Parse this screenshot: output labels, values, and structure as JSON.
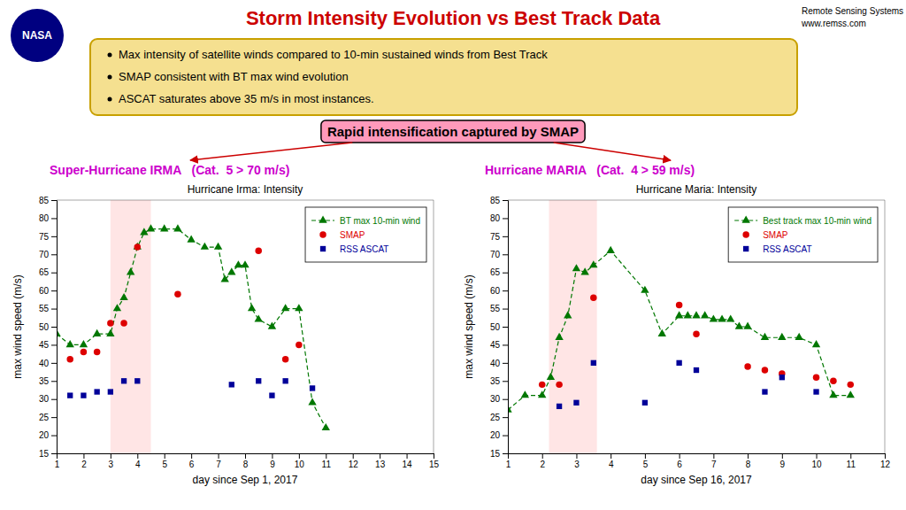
{
  "title": "Storm Intensity Evolution vs Best Track Data",
  "title_color": "#cc0000",
  "background_color": "#ffffff",
  "logo": {
    "text": "NASA",
    "color": "navy"
  },
  "credits": [
    "Remote Sensing Systems",
    "www.remss.com"
  ],
  "bullets": {
    "texts": [
      "Max intensity of satellite winds compared to 10-min sustained winds from Best Track",
      "SMAP consistent with BT max wind evolution",
      "ASCAT saturates above 35 m/s in most instances."
    ],
    "box_color": "#f5e090",
    "border_color": "#c8a000"
  },
  "callout": {
    "text": "Rapid intensification captured by SMAP",
    "box_color": "#ff99bb",
    "arrow_color": "#cc0000"
  },
  "storm_labels": [
    {
      "text": "Super-Hurricane IRMA   (Cat.  5 > 70 m/s)",
      "color": "#cc00cc"
    },
    {
      "text": "Hurricane MARIA   (Cat.  4 > 59 m/s)",
      "color": "#cc00cc"
    }
  ],
  "chart_data": [
    {
      "type": "line",
      "title": "Hurricane Irma: Intensity",
      "x_label": "day since Sep 1, 2017",
      "y_label": "max wind speed (m/s)",
      "xlim": [
        1,
        15
      ],
      "xticks": [
        1,
        2,
        3,
        4,
        5,
        6,
        7,
        8,
        9,
        10,
        11,
        12,
        13,
        14,
        15
      ],
      "ylim": [
        15,
        85
      ],
      "yticks": [
        15,
        20,
        25,
        30,
        35,
        40,
        45,
        50,
        55,
        60,
        65,
        70,
        75,
        80,
        85
      ],
      "grid": false,
      "legend": "upper right",
      "highlight": {
        "x": [
          3,
          4.5
        ],
        "color": "#ffaaaa"
      },
      "series": [
        {
          "name": "BT max 10-min wind",
          "type": "line",
          "color": "#007700",
          "marker": "triangle",
          "line_style": "dashed",
          "x": [
            1.0,
            1.5,
            2.0,
            2.5,
            3.0,
            3.25,
            3.5,
            3.75,
            4.0,
            4.25,
            4.5,
            5.0,
            5.5,
            6.0,
            6.5,
            7.0,
            7.25,
            7.5,
            7.75,
            8.0,
            8.25,
            8.5,
            9.0,
            9.5,
            10.0,
            10.5,
            11.0
          ],
          "values": [
            48,
            45,
            45,
            48,
            48,
            55,
            58,
            65,
            72,
            76,
            77,
            77,
            77,
            74,
            72,
            72,
            63,
            65,
            67,
            67,
            55,
            52,
            50,
            55,
            55,
            29,
            22
          ]
        },
        {
          "name": "SMAP",
          "type": "scatter",
          "color": "#dd0000",
          "marker": "circle",
          "x": [
            1.5,
            2.0,
            2.5,
            3.0,
            3.5,
            4.0,
            5.5,
            8.5,
            9.5,
            10.0
          ],
          "values": [
            41,
            43,
            43,
            51,
            51,
            72,
            59,
            71,
            41,
            45
          ]
        },
        {
          "name": "RSS ASCAT",
          "type": "scatter",
          "color": "#000099",
          "marker": "square",
          "x": [
            1.5,
            2.0,
            2.5,
            3.0,
            3.5,
            4.0,
            7.5,
            8.5,
            9.0,
            9.5,
            10.5
          ],
          "values": [
            31,
            31,
            32,
            32,
            35,
            35,
            34,
            35,
            31,
            35,
            33
          ]
        }
      ]
    },
    {
      "type": "line",
      "title": "Hurricane Maria: Intensity",
      "x_label": "day since Sep 16, 2017",
      "y_label": "max wind speed (m/s)",
      "xlim": [
        1,
        12
      ],
      "xticks": [
        1,
        2,
        3,
        4,
        5,
        6,
        7,
        8,
        9,
        10,
        11,
        12
      ],
      "ylim": [
        15,
        85
      ],
      "yticks": [
        15,
        20,
        25,
        30,
        35,
        40,
        45,
        50,
        55,
        60,
        65,
        70,
        75,
        80,
        85
      ],
      "grid": false,
      "legend": "upper right",
      "highlight": {
        "x": [
          2.2,
          3.6
        ],
        "color": "#ffaaaa"
      },
      "series": [
        {
          "name": "Best track max 10-min wind",
          "type": "line",
          "color": "#007700",
          "marker": "triangle",
          "line_style": "dashed",
          "x": [
            1.0,
            1.5,
            2.0,
            2.25,
            2.5,
            2.75,
            3.0,
            3.25,
            3.5,
            4.0,
            5.0,
            5.5,
            6.0,
            6.25,
            6.5,
            6.75,
            7.0,
            7.25,
            7.5,
            7.75,
            8.0,
            8.5,
            9.0,
            9.5,
            10.0,
            10.5,
            11.0
          ],
          "values": [
            27,
            31,
            31,
            36,
            47,
            53,
            66,
            65,
            67,
            71,
            60,
            48,
            53,
            53,
            53,
            53,
            52,
            52,
            52,
            50,
            50,
            47,
            47,
            47,
            45,
            31,
            31
          ]
        },
        {
          "name": "SMAP",
          "type": "scatter",
          "color": "#dd0000",
          "marker": "circle",
          "x": [
            2.0,
            2.5,
            3.5,
            6.0,
            6.5,
            8.0,
            8.5,
            9.0,
            10.0,
            10.5,
            11.0
          ],
          "values": [
            34,
            34,
            58,
            56,
            48,
            39,
            38,
            37,
            36,
            35,
            34
          ]
        },
        {
          "name": "RSS ASCAT",
          "type": "scatter",
          "color": "#000099",
          "marker": "square",
          "x": [
            2.5,
            3.0,
            3.5,
            5.0,
            6.0,
            6.5,
            8.5,
            9.0,
            10.0
          ],
          "values": [
            28,
            29,
            40,
            29,
            40,
            38,
            32,
            36,
            32
          ]
        }
      ]
    }
  ]
}
